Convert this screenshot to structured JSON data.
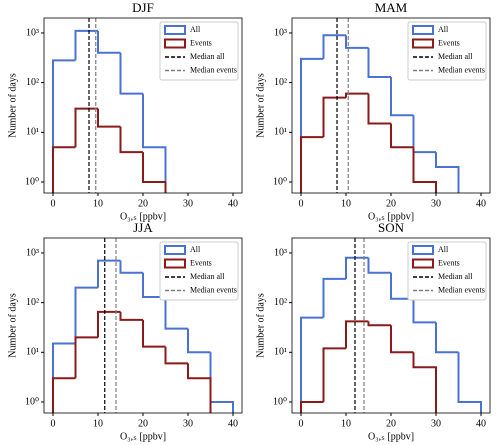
{
  "chart_data": [
    {
      "type": "histogram",
      "title": "DJF",
      "xlabel": "O₃,ₛ [ppbv]",
      "ylabel": "Number of days",
      "log_y": true,
      "legend": "upper right",
      "xlim": [
        -2,
        42
      ],
      "xticks": [
        0,
        10,
        20,
        30,
        40
      ],
      "ylim": [
        0.6,
        2000
      ],
      "yticks": [
        {
          "value": 1,
          "label": "10⁰"
        },
        {
          "value": 10,
          "label": "10¹"
        },
        {
          "value": 100,
          "label": "10²"
        },
        {
          "value": 1000,
          "label": "10³"
        }
      ],
      "series": [
        {
          "name": "All",
          "color": "#4a72d4",
          "bins": [
            0,
            5,
            10,
            15,
            20,
            25
          ],
          "values": [
            280,
            1100,
            400,
            60,
            5
          ]
        },
        {
          "name": "Events",
          "color": "#8b1a1a",
          "bins": [
            0,
            5,
            10,
            15,
            20,
            25
          ],
          "values": [
            5,
            30,
            13,
            4,
            1
          ]
        }
      ],
      "medians": [
        {
          "name": "Median all",
          "color": "#000000",
          "value": 8
        },
        {
          "name": "Median events",
          "color": "#808080",
          "value": 9.5
        }
      ]
    },
    {
      "type": "histogram",
      "title": "MAM",
      "xlabel": "O₃,ₛ [ppbv]",
      "ylabel": "Number of days",
      "log_y": true,
      "legend": "upper right",
      "xlim": [
        -2,
        42
      ],
      "xticks": [
        0,
        10,
        20,
        30,
        40
      ],
      "ylim": [
        0.6,
        2000
      ],
      "yticks": [
        {
          "value": 1,
          "label": "10⁰"
        },
        {
          "value": 10,
          "label": "10¹"
        },
        {
          "value": 100,
          "label": "10²"
        },
        {
          "value": 1000,
          "label": "10³"
        }
      ],
      "series": [
        {
          "name": "All",
          "color": "#4a72d4",
          "bins": [
            0,
            5,
            10,
            15,
            20,
            25,
            30,
            35
          ],
          "values": [
            300,
            900,
            500,
            130,
            22,
            4,
            2
          ]
        },
        {
          "name": "Events",
          "color": "#8b1a1a",
          "bins": [
            0,
            5,
            10,
            15,
            20,
            25,
            30
          ],
          "values": [
            8,
            50,
            60,
            15,
            5,
            1
          ]
        }
      ],
      "medians": [
        {
          "name": "Median all",
          "color": "#000000",
          "value": 8
        },
        {
          "name": "Median events",
          "color": "#808080",
          "value": 10.5
        }
      ]
    },
    {
      "type": "histogram",
      "title": "JJA",
      "xlabel": "O₃,ₛ [ppbv]",
      "ylabel": "Number of days",
      "log_y": true,
      "legend": "upper right",
      "xlim": [
        -2,
        42
      ],
      "xticks": [
        0,
        10,
        20,
        30,
        40
      ],
      "ylim": [
        0.6,
        2000
      ],
      "yticks": [
        {
          "value": 1,
          "label": "10⁰"
        },
        {
          "value": 10,
          "label": "10¹"
        },
        {
          "value": 100,
          "label": "10²"
        },
        {
          "value": 1000,
          "label": "10³"
        }
      ],
      "series": [
        {
          "name": "All",
          "color": "#4a72d4",
          "bins": [
            0,
            5,
            10,
            15,
            20,
            25,
            30,
            35,
            40
          ],
          "values": [
            15,
            200,
            700,
            400,
            130,
            30,
            10,
            1
          ]
        },
        {
          "name": "Events",
          "color": "#8b1a1a",
          "bins": [
            0,
            5,
            10,
            15,
            20,
            25,
            30,
            35
          ],
          "values": [
            3,
            20,
            65,
            45,
            13,
            6,
            3
          ]
        }
      ],
      "medians": [
        {
          "name": "Median all",
          "color": "#000000",
          "value": 11.5
        },
        {
          "name": "Median events",
          "color": "#808080",
          "value": 14
        }
      ]
    },
    {
      "type": "histogram",
      "title": "SON",
      "xlabel": "O₃,ₛ [ppbv]",
      "ylabel": "Number of days",
      "log_y": true,
      "legend": "upper right",
      "xlim": [
        -2,
        42
      ],
      "xticks": [
        0,
        10,
        20,
        30,
        40
      ],
      "ylim": [
        0.6,
        2000
      ],
      "yticks": [
        {
          "value": 1,
          "label": "10⁰"
        },
        {
          "value": 10,
          "label": "10¹"
        },
        {
          "value": 100,
          "label": "10²"
        },
        {
          "value": 1000,
          "label": "10³"
        }
      ],
      "series": [
        {
          "name": "All",
          "color": "#4a72d4",
          "bins": [
            0,
            5,
            10,
            15,
            20,
            25,
            30,
            35,
            40
          ],
          "values": [
            50,
            300,
            800,
            400,
            120,
            40,
            10,
            1
          ]
        },
        {
          "name": "Events",
          "color": "#8b1a1a",
          "bins": [
            0,
            5,
            10,
            15,
            20,
            25,
            30
          ],
          "values": [
            1,
            12,
            42,
            35,
            10,
            5
          ]
        }
      ],
      "medians": [
        {
          "name": "Median all",
          "color": "#000000",
          "value": 12
        },
        {
          "name": "Median events",
          "color": "#808080",
          "value": 14
        }
      ]
    }
  ]
}
